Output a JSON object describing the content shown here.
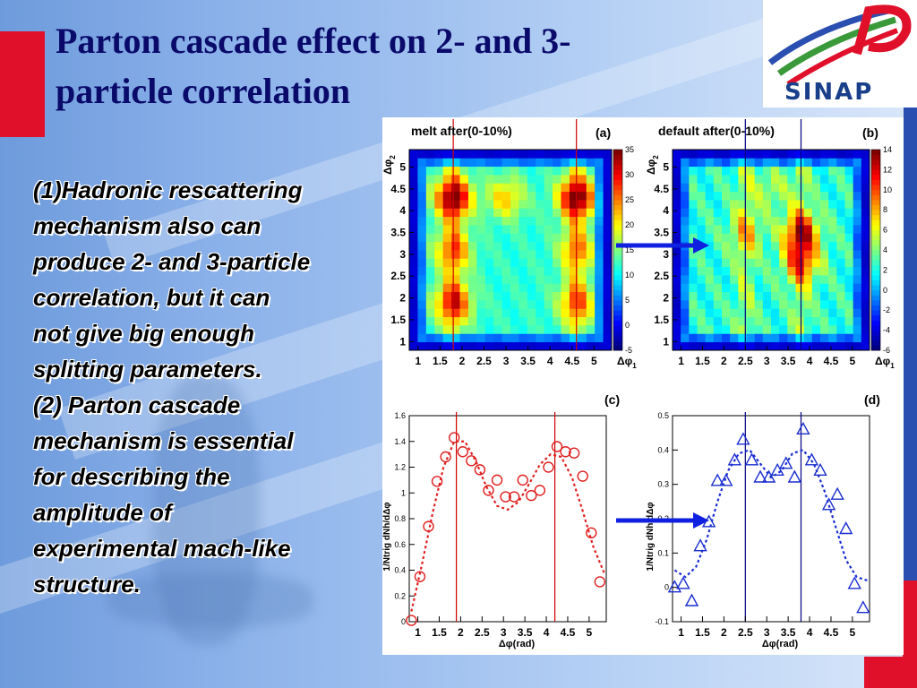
{
  "slide": {
    "title_line1": "Parton cascade effect on 2- and 3-",
    "title_line2": "particle correlation",
    "body": [
      "(1)Hadronic rescattering",
      "mechanism also can",
      "produce 2- and 3-particle",
      "correlation, but it can",
      "not give big enough",
      "splitting parameters.",
      "(2) Parton cascade",
      "mechanism is  essential",
      "for describing the",
      "amplitude of",
      "experimental mach-like",
      "structure."
    ],
    "logo_text": "SINAP",
    "colors": {
      "title": "#0a0a6a",
      "accent_red": "#e0102a",
      "arrow_blue": "#1020e0"
    }
  },
  "chart_data": [
    {
      "type": "heatmap",
      "panel": "(a)",
      "title": "melt after(0-10%)",
      "xlabel": "Δφ1",
      "ylabel": "Δφ2",
      "xlim": [
        0.8,
        5.4
      ],
      "ylim": [
        0.8,
        5.4
      ],
      "xticks": [
        "1",
        "1.5",
        "2",
        "2.5",
        "3",
        "3.5",
        "4",
        "4.5",
        "5"
      ],
      "yticks": [
        "1",
        "1.5",
        "2",
        "2.5",
        "3",
        "3.5",
        "4",
        "4.5",
        "5"
      ],
      "colorbar_range": [
        -5,
        35
      ],
      "colorbar_ticks": [
        "35",
        "30",
        "25",
        "20",
        "15",
        "10",
        "5",
        "0",
        "-5"
      ],
      "vertical_lines_x": [
        1.8,
        4.6
      ],
      "hotspots": [
        {
          "x": 1.8,
          "y": 4.3,
          "level": 33
        },
        {
          "x": 4.6,
          "y": 4.3,
          "level": 33
        },
        {
          "x": 1.8,
          "y": 1.9,
          "level": 28
        },
        {
          "x": 4.6,
          "y": 1.9,
          "level": 24
        },
        {
          "x": 3.0,
          "y": 4.3,
          "level": 22
        },
        {
          "x": 1.8,
          "y": 3.1,
          "level": 24
        },
        {
          "x": 4.6,
          "y": 3.1,
          "level": 22
        }
      ]
    },
    {
      "type": "heatmap",
      "panel": "(b)",
      "title": "default after(0-10%)",
      "xlabel": "Δφ1",
      "ylabel": "Δφ2",
      "xlim": [
        0.8,
        5.4
      ],
      "ylim": [
        0.8,
        5.4
      ],
      "xticks": [
        "1",
        "1.5",
        "2",
        "2.5",
        "3",
        "3.5",
        "4",
        "4.5",
        "5"
      ],
      "yticks": [
        "1",
        "1.5",
        "2",
        "2.5",
        "3",
        "3.5",
        "4",
        "4.5",
        "5"
      ],
      "colorbar_range": [
        -6,
        14
      ],
      "colorbar_ticks": [
        "14",
        "12",
        "10",
        "8",
        "6",
        "4",
        "2",
        "0",
        "-2",
        "-4",
        "-6"
      ],
      "vertical_lines_x": [
        2.5,
        3.8
      ],
      "hotspots": [
        {
          "x": 3.8,
          "y": 3.5,
          "level": 11
        },
        {
          "x": 3.8,
          "y": 2.8,
          "level": 9
        },
        {
          "x": 2.5,
          "y": 3.5,
          "level": 6
        },
        {
          "x": 3.1,
          "y": 4.5,
          "level": 5
        }
      ]
    },
    {
      "type": "scatter",
      "panel": "(c)",
      "title": "",
      "xlabel": "Δφ(rad)",
      "ylabel": "1/Ntrig dNh/dΔφ",
      "xlim": [
        0.8,
        5.4
      ],
      "ylim": [
        0,
        1.6
      ],
      "xticks": [
        "1",
        "1.5",
        "2",
        "2.5",
        "3",
        "3.5",
        "4",
        "4.5",
        "5"
      ],
      "yticks": [
        "0",
        "0.2",
        "0.4",
        "0.6",
        "0.8",
        "1",
        "1.2",
        "1.4",
        "1.6"
      ],
      "vertical_lines_x": [
        1.9,
        4.2
      ],
      "series": [
        {
          "marker": "circle",
          "color": "#e02020",
          "x": [
            0.85,
            1.05,
            1.25,
            1.45,
            1.65,
            1.85,
            2.05,
            2.25,
            2.45,
            2.65,
            2.85,
            3.05,
            3.25,
            3.45,
            3.65,
            3.85,
            4.05,
            4.25,
            4.45,
            4.65,
            4.85,
            5.05,
            5.25
          ],
          "y": [
            0.01,
            0.35,
            0.74,
            1.09,
            1.28,
            1.43,
            1.32,
            1.25,
            1.18,
            1.02,
            1.1,
            0.97,
            0.97,
            1.1,
            0.98,
            1.02,
            1.2,
            1.36,
            1.32,
            1.31,
            1.13,
            0.69,
            0.31
          ]
        },
        {
          "style": "dashed-curve",
          "color": "#e02020",
          "x": [
            0.85,
            1.1,
            1.35,
            1.6,
            1.85,
            2.1,
            2.35,
            2.6,
            2.85,
            3.1,
            3.35,
            3.6,
            3.85,
            4.1,
            4.35,
            4.6,
            4.85,
            5.1,
            5.35
          ],
          "y": [
            0.08,
            0.45,
            0.85,
            1.2,
            1.4,
            1.4,
            1.25,
            1.05,
            0.9,
            0.87,
            0.93,
            1.07,
            1.22,
            1.3,
            1.28,
            1.12,
            0.86,
            0.58,
            0.38
          ]
        }
      ]
    },
    {
      "type": "scatter",
      "panel": "(d)",
      "title": "",
      "xlabel": "Δφ(rad)",
      "ylabel": "1/Ntrig dNh/dΔφ",
      "xlim": [
        0.8,
        5.4
      ],
      "ylim": [
        -0.1,
        0.5
      ],
      "xticks": [
        "1",
        "1.5",
        "2",
        "2.5",
        "3",
        "3.5",
        "4",
        "4.5",
        "5"
      ],
      "yticks": [
        "-0.1",
        "0",
        "0.1",
        "0.2",
        "0.3",
        "0.4",
        "0.5"
      ],
      "vertical_lines_x": [
        2.5,
        3.8
      ],
      "series": [
        {
          "marker": "triangle",
          "color": "#1a2ed0",
          "x": [
            0.85,
            1.05,
            1.25,
            1.45,
            1.65,
            1.85,
            2.05,
            2.25,
            2.45,
            2.65,
            2.85,
            3.05,
            3.25,
            3.45,
            3.65,
            3.85,
            4.05,
            4.25,
            4.45,
            4.65,
            4.85,
            5.05,
            5.25
          ],
          "y": [
            0.0,
            0.01,
            -0.04,
            0.12,
            0.19,
            0.31,
            0.31,
            0.37,
            0.43,
            0.37,
            0.32,
            0.32,
            0.34,
            0.36,
            0.32,
            0.46,
            0.37,
            0.34,
            0.24,
            0.27,
            0.17,
            0.01,
            -0.06
          ]
        },
        {
          "style": "dashed-curve",
          "color": "#1a2ed0",
          "x": [
            0.85,
            1.1,
            1.35,
            1.6,
            1.85,
            2.1,
            2.35,
            2.6,
            2.85,
            3.1,
            3.35,
            3.6,
            3.85,
            4.1,
            4.35,
            4.6,
            4.85,
            5.1,
            5.35
          ],
          "y": [
            0.05,
            0.03,
            0.06,
            0.14,
            0.25,
            0.34,
            0.39,
            0.4,
            0.36,
            0.32,
            0.34,
            0.39,
            0.4,
            0.36,
            0.28,
            0.18,
            0.08,
            0.03,
            0.02
          ]
        }
      ]
    }
  ]
}
